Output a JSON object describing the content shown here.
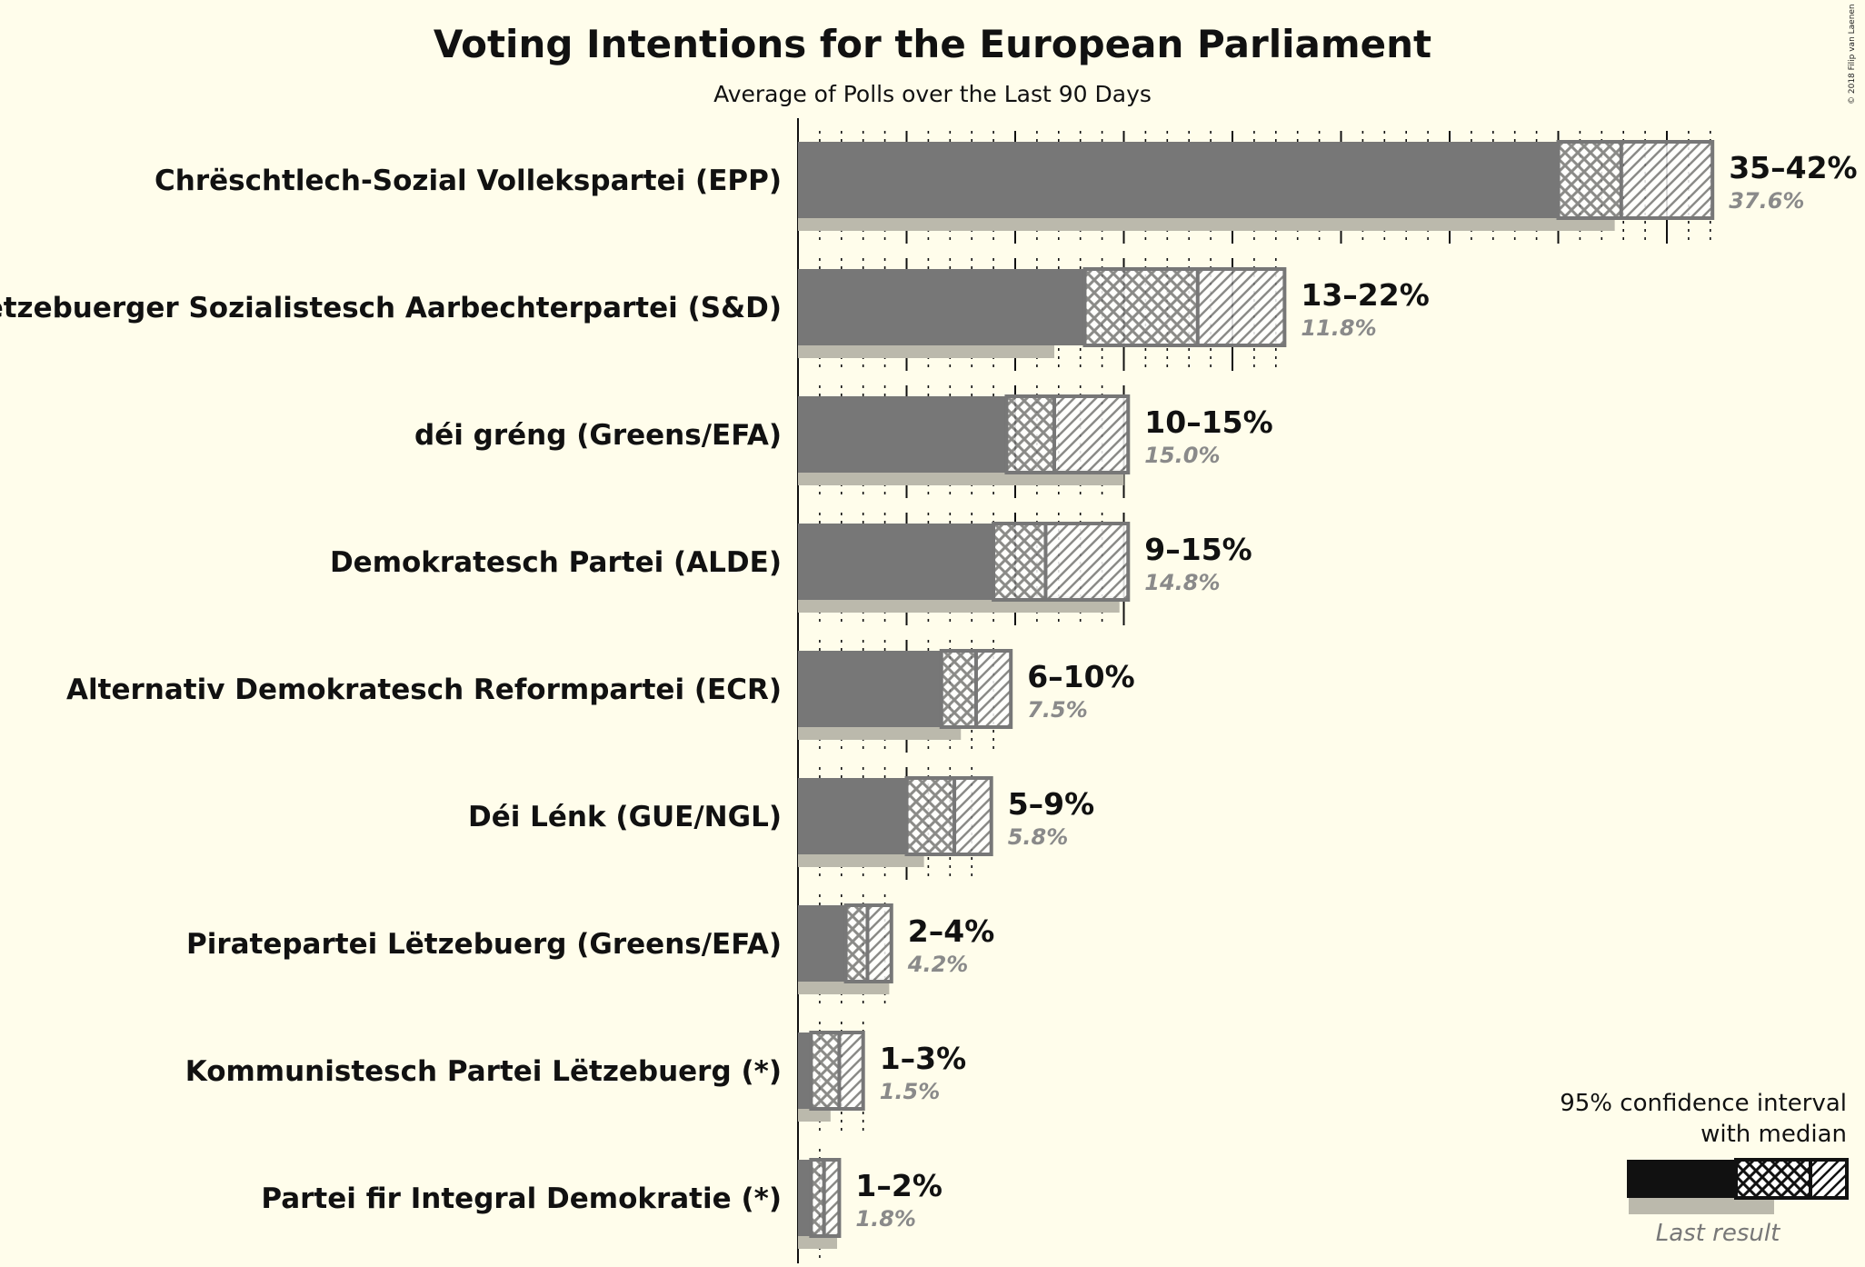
{
  "chart_data": {
    "type": "bar",
    "title": "Voting Intentions for the European Parliament",
    "subtitle": "Average of Polls over the Last 90 Days",
    "copyright": "© 2018 Filip van Laenen",
    "legend": {
      "line1": "95% confidence interval",
      "line2": "with median",
      "last_result": "Last result",
      "placement": "bottom-right"
    },
    "colors": {
      "background": "#fffdeb",
      "bar": "#777777",
      "outline": "#777777",
      "last_result": "#bbb9ac",
      "legend_bar": "#111111"
    },
    "xlim": [
      0,
      42.5
    ],
    "parties": [
      {
        "name": "Chrëschtlech-Sozial Vollekspartei (EPP)",
        "range": "35–42%",
        "last_label": "37.6%",
        "low": 35,
        "median": 37.9,
        "high": 42.1,
        "last": 37.6
      },
      {
        "name": "Lëtzebuerger Sozialistesch Aarbechterpartei (S&D)",
        "range": "13–22%",
        "last_label": "11.8%",
        "low": 13.2,
        "median": 18.4,
        "high": 22.4,
        "last": 11.8
      },
      {
        "name": "déi gréng (Greens/EFA)",
        "range": "10–15%",
        "last_label": "15.0%",
        "low": 9.6,
        "median": 11.8,
        "high": 15.2,
        "last": 15.0
      },
      {
        "name": "Demokratesch Partei (ALDE)",
        "range": "9–15%",
        "last_label": "14.8%",
        "low": 9.0,
        "median": 11.4,
        "high": 15.2,
        "last": 14.8
      },
      {
        "name": "Alternativ Demokratesch Reformpartei (ECR)",
        "range": "6–10%",
        "last_label": "7.5%",
        "low": 6.6,
        "median": 8.2,
        "high": 9.8,
        "last": 7.5
      },
      {
        "name": "Déi Lénk (GUE/NGL)",
        "range": "5–9%",
        "last_label": "5.8%",
        "low": 5.0,
        "median": 7.2,
        "high": 8.9,
        "last": 5.8
      },
      {
        "name": "Piratepartei Lëtzebuerg (Greens/EFA)",
        "range": "2–4%",
        "last_label": "4.2%",
        "low": 2.2,
        "median": 3.2,
        "high": 4.3,
        "last": 4.2
      },
      {
        "name": "Kommunistesch Partei Lëtzebuerg (*)",
        "range": "1–3%",
        "last_label": "1.5%",
        "low": 0.6,
        "median": 1.9,
        "high": 3.0,
        "last": 1.5
      },
      {
        "name": "Partei fir Integral Demokratie (*)",
        "range": "1–2%",
        "last_label": "1.8%",
        "low": 0.6,
        "median": 1.2,
        "high": 1.9,
        "last": 1.8
      }
    ]
  }
}
